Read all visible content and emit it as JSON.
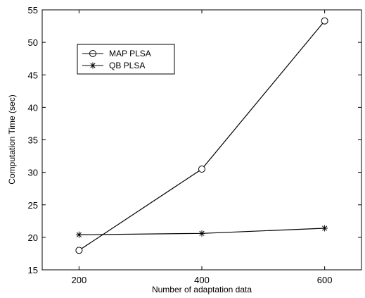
{
  "chart_data": {
    "type": "line",
    "title": "",
    "xlabel": "Number of adaptation data",
    "ylabel": "Computation Time (sec)",
    "xlim": [
      140,
      660
    ],
    "ylim": [
      15,
      55
    ],
    "x": [
      200,
      400,
      600
    ],
    "xticks": [
      200,
      400,
      600
    ],
    "yticks": [
      15,
      20,
      25,
      30,
      35,
      40,
      45,
      50,
      55
    ],
    "grid": false,
    "legend": "top-left",
    "series": [
      {
        "name": "MAP PLSA",
        "marker": "circle",
        "color": "#000000",
        "values": [
          18.0,
          30.5,
          53.3
        ]
      },
      {
        "name": "QB PLSA",
        "marker": "star",
        "color": "#000000",
        "values": [
          20.4,
          20.6,
          21.4
        ]
      }
    ]
  }
}
